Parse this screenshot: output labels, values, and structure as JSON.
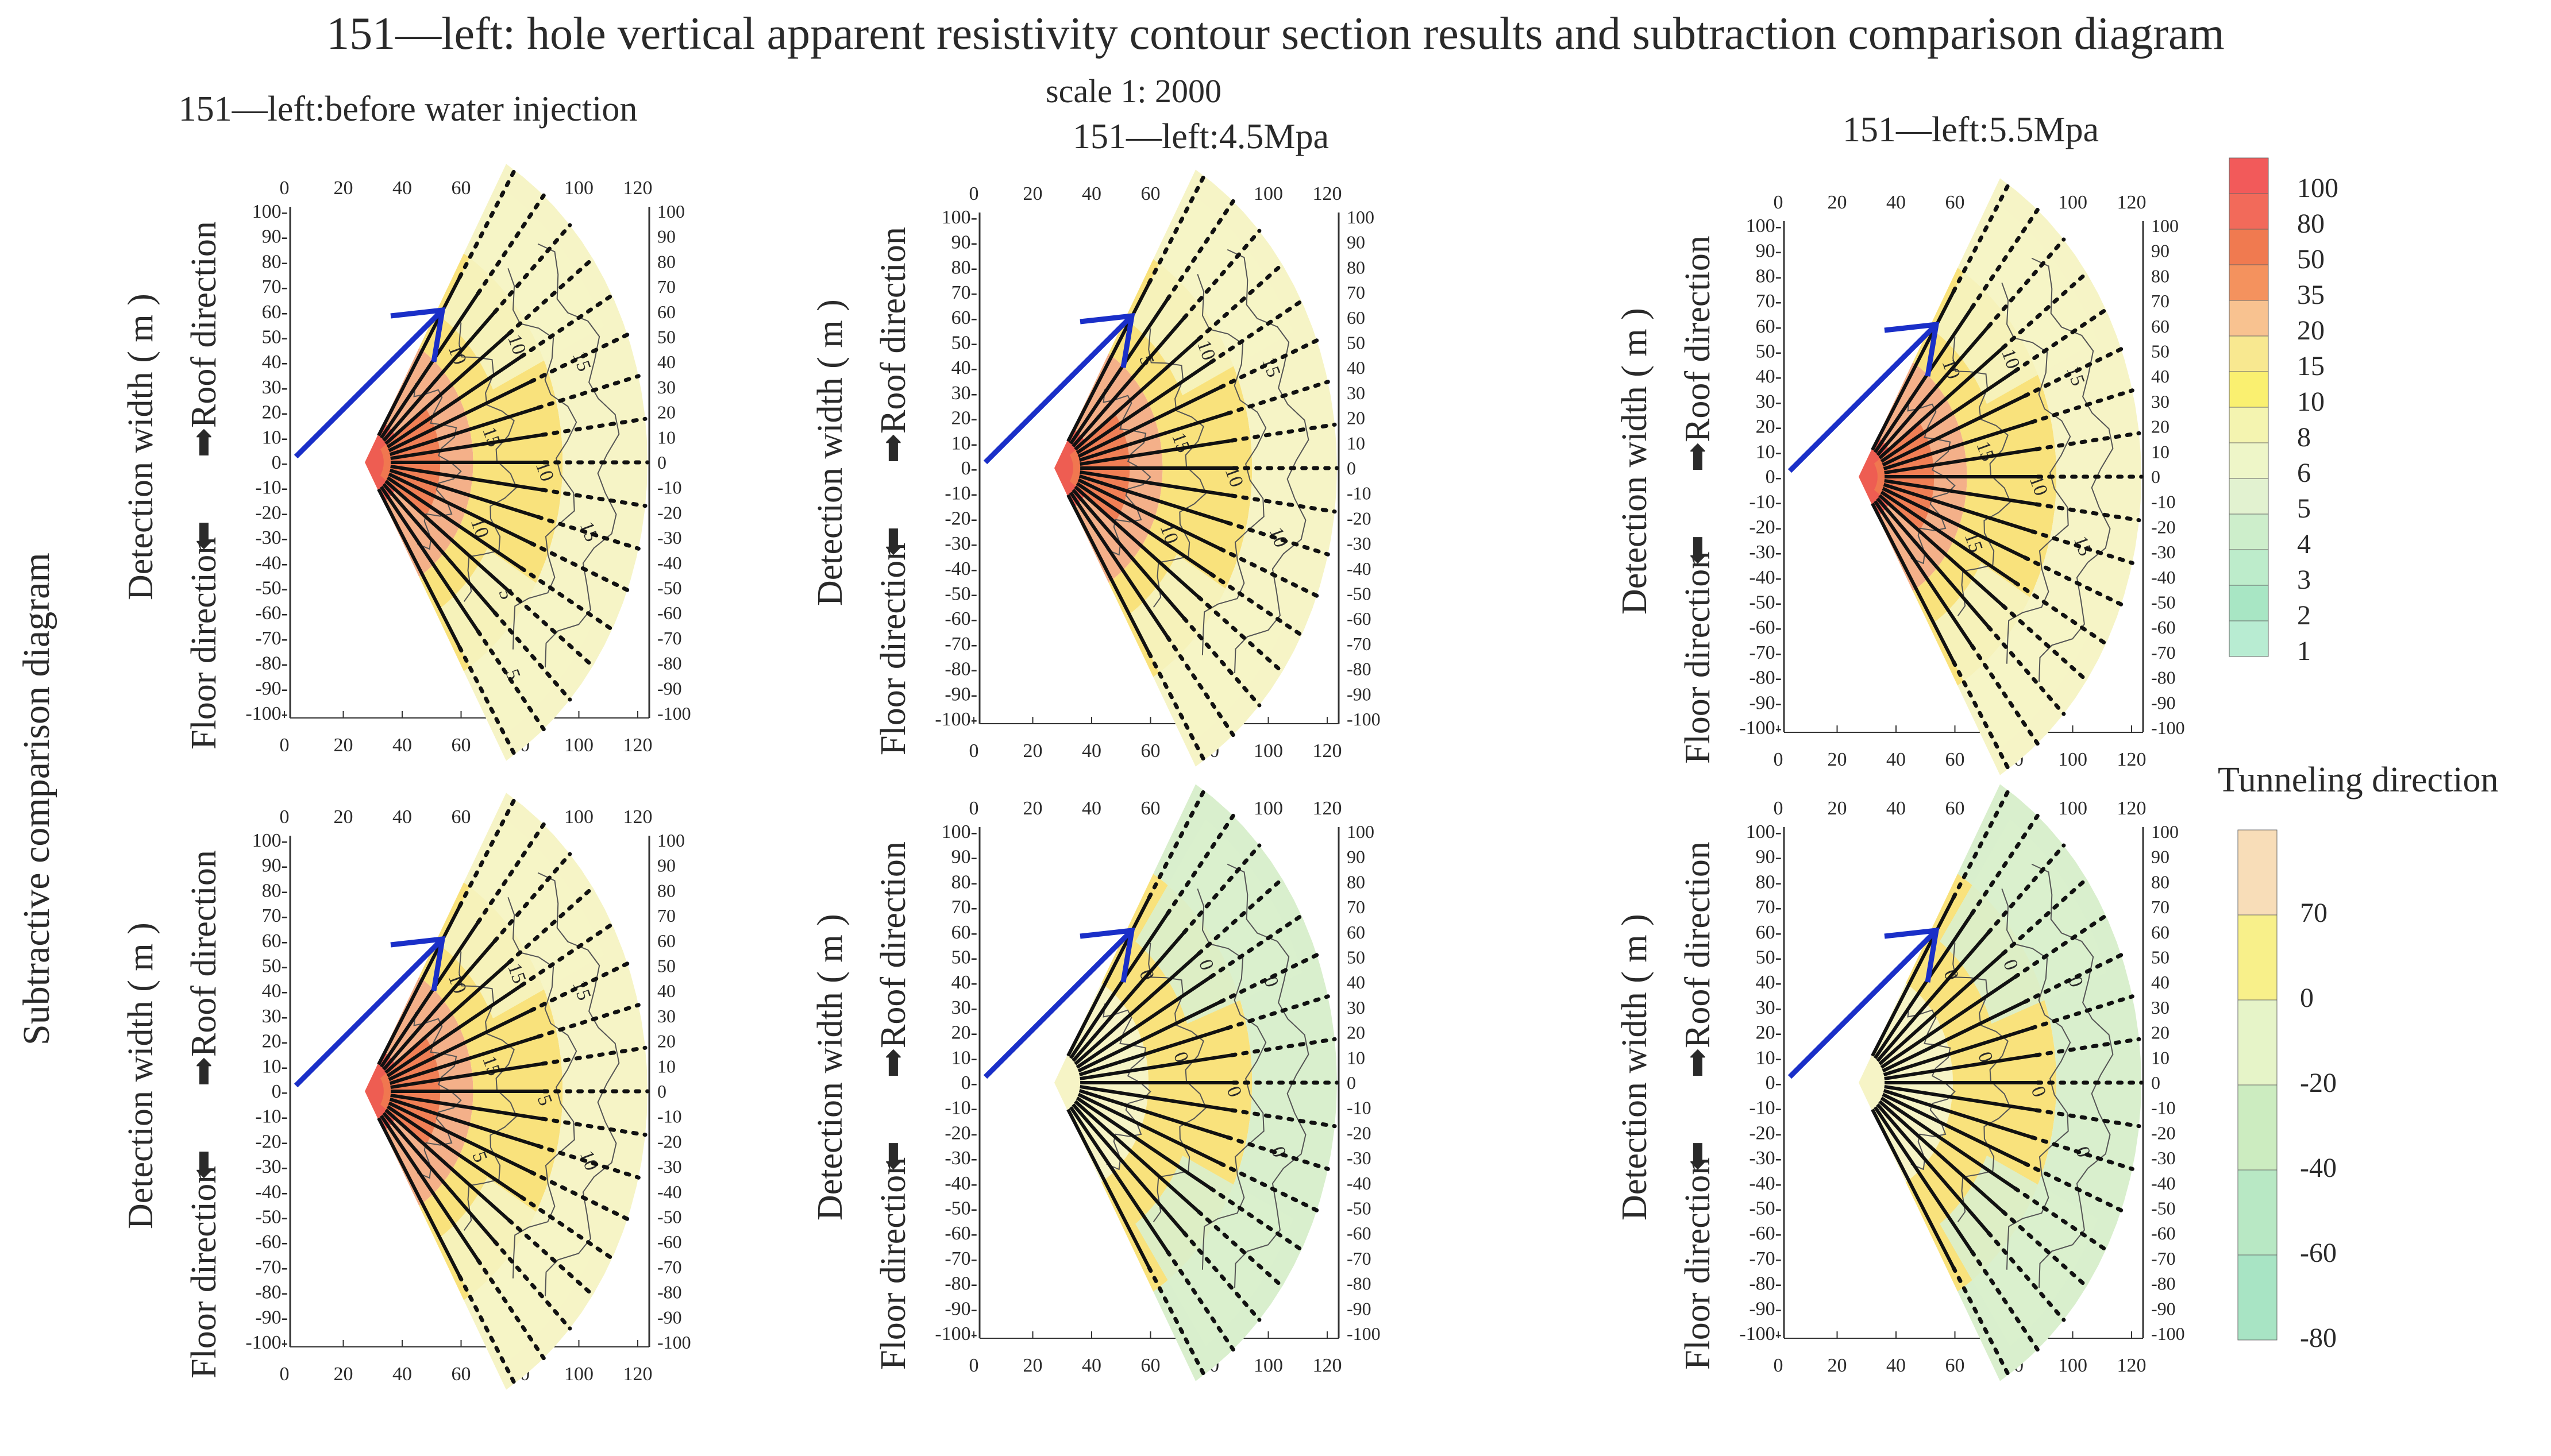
{
  "title": "151—left:  hole vertical apparent resistivity contour section results and subtraction comparison diagram",
  "scale_label": "scale  1:  2000",
  "side_label": "Subtractive comparison diagram",
  "tunneling_label": "Tunneling direction",
  "axis": {
    "width_label": "Detection width ( m )",
    "roof_label": "Roof direction",
    "floor_label": "Floor direction",
    "up_arrow": "⬆",
    "down_arrow": "⬇",
    "x_ticks": [
      "0",
      "20",
      "40",
      "60",
      "80",
      "100",
      "120"
    ],
    "y_ticks": [
      "100-",
      "90-",
      "80-",
      "70-",
      "60-",
      "50-",
      "40-",
      "30-",
      "20-",
      "10-",
      "0-",
      "-10-",
      "-20-",
      "-30-",
      "-40-",
      "-50-",
      "-60-",
      "-70-",
      "-80-",
      "-90-",
      "-100-"
    ],
    "y_ticks_right": [
      "100",
      "90",
      "80",
      "70",
      "60",
      "50",
      "40",
      "30",
      "20",
      "10",
      "0",
      "-10",
      "-20",
      "-30",
      "-40",
      "-50",
      "-60",
      "-70",
      "-80",
      "-90",
      "-100"
    ]
  },
  "panels": [
    {
      "title": "151—left:before water injection",
      "type": "resistivity",
      "contours": [
        "10",
        "10",
        "15",
        "15",
        "10",
        "15",
        "10",
        "5",
        "5"
      ]
    },
    {
      "title": "151—left:4.5Mpa",
      "type": "resistivity",
      "contours": [
        "5",
        "10",
        "15",
        "15",
        "10",
        "10",
        "10"
      ]
    },
    {
      "title": "151—left:5.5Mpa",
      "type": "resistivity",
      "contours": [
        "10",
        "10",
        "15",
        "15",
        "10",
        "15",
        "15"
      ]
    },
    {
      "title": "",
      "type": "resistivity",
      "contours": [
        "10",
        "15",
        "15",
        "15",
        "5",
        "10",
        "5"
      ]
    },
    {
      "title": "",
      "type": "subtraction",
      "contours": [
        "0",
        "0",
        "0",
        "0",
        "0",
        "0"
      ]
    },
    {
      "title": "",
      "type": "subtraction",
      "contours": [
        "0",
        "0",
        "0",
        "0",
        "0",
        "0"
      ]
    }
  ],
  "colorbar_resistivity": {
    "labels": [
      "100",
      "80",
      "50",
      "35",
      "20",
      "15",
      "10",
      "8",
      "6",
      "5",
      "4",
      "3",
      "2",
      "1"
    ],
    "colors": [
      "#f25a5a",
      "#f26a5a",
      "#f07a50",
      "#f4925e",
      "#f8c290",
      "#f8e890",
      "#faf070",
      "#f4f4b0",
      "#eef6c8",
      "#e2f2d0",
      "#cdeecb",
      "#bdeccb",
      "#a8e6c4",
      "#b8ecd2"
    ]
  },
  "colorbar_difference": {
    "labels": [
      "70",
      "0",
      "-20",
      "-40",
      "-60",
      "-80"
    ],
    "colors": [
      "#f8ddb8",
      "#f8f08a",
      "#e6f4c8",
      "#ccecc0",
      "#b8e8c4",
      "#a8e4c4"
    ]
  },
  "colors": {
    "line": "#111111",
    "arrow": "#1a2fc8",
    "hot": "#ee5d52",
    "warm": "#f4b089",
    "mid": "#f9e27c",
    "pale": "#f6f4c6",
    "cool": "#d9efcd"
  }
}
